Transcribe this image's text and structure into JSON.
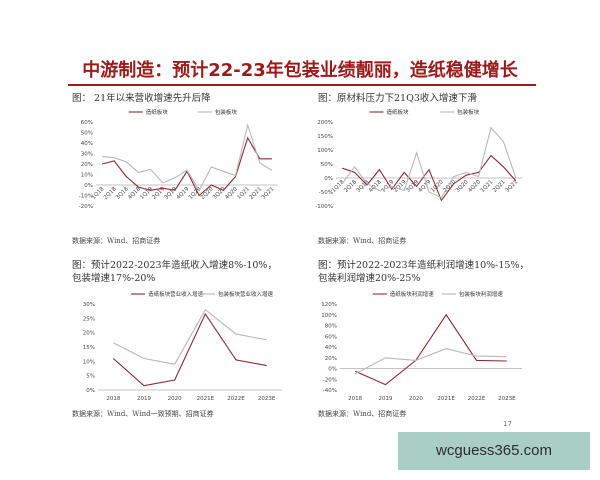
{
  "page": {
    "title": "中游制造：预计22-23年包装业绩靓丽，造纸稳健增长",
    "page_number": "17",
    "watermark": "wcguess365.com"
  },
  "colors": {
    "title": "#9b1b1b",
    "paper_series": "#8a2a35",
    "packaging_series": "#b8b8b8"
  },
  "panels": [
    {
      "title": "图：  21年以来营收增速先升后降",
      "source": "数据来源：Wind、招商证券"
    },
    {
      "title": "图：原材料压力下21Q3收入增速下滑",
      "source": "数据来源：Wind、招商证券"
    },
    {
      "title": "图：预计2022-2023年造纸收入增速8%-10%，\n包装增速17%-20%",
      "source": "数据来源：Wind、Wind一致预期、招商证券"
    },
    {
      "title": "图：预计2022-2023年造纸利润增速10%-15%，\n包装利润增速20%-25%",
      "source": "数据来源：Wind、招商证券"
    }
  ],
  "chart_data": [
    {
      "type": "line",
      "categories": [
        "1Q18",
        "2Q18",
        "3Q18",
        "4Q18",
        "1Q19",
        "2Q19",
        "3Q19",
        "4Q19",
        "1Q20",
        "2Q20",
        "3Q20",
        "4Q20",
        "1Q21",
        "2Q21",
        "3Q21"
      ],
      "series": [
        {
          "name": "造纸板块",
          "color": "#8a2a35",
          "values": [
            20,
            23,
            8,
            -2,
            -5,
            -3,
            -5,
            13,
            -10,
            0,
            -5,
            8,
            45,
            25,
            25
          ]
        },
        {
          "name": "包装板块",
          "color": "#b8b8b8",
          "values": [
            27,
            26,
            22,
            12,
            15,
            2,
            7,
            14,
            -5,
            17,
            13,
            9,
            57,
            21,
            14
          ]
        }
      ],
      "ylim": [
        -20,
        60
      ],
      "yticks": [
        "-20%",
        "-10%",
        "0%",
        "10%",
        "20%",
        "30%",
        "40%",
        "50%",
        "60%"
      ],
      "legend": "top"
    },
    {
      "type": "line",
      "categories": [
        "1Q18",
        "2Q18",
        "3Q18",
        "4Q18",
        "1Q19",
        "2Q19",
        "3Q19",
        "4Q19",
        "1Q20",
        "2Q20",
        "3Q20",
        "4Q20",
        "1Q21",
        "2Q21",
        "3Q21"
      ],
      "series": [
        {
          "name": "造纸板块",
          "color": "#8a2a35",
          "values": [
            35,
            20,
            -25,
            30,
            -40,
            20,
            -30,
            30,
            -80,
            -20,
            10,
            20,
            80,
            40,
            -10
          ]
        },
        {
          "name": "包装板块",
          "color": "#b8b8b8",
          "values": [
            -20,
            40,
            -20,
            -45,
            -30,
            -45,
            90,
            -50,
            -70,
            5,
            20,
            5,
            180,
            130,
            0
          ]
        }
      ],
      "ylim": [
        -100,
        200
      ],
      "yticks": [
        "-100%",
        "-50%",
        "0%",
        "50%",
        "100%",
        "150%",
        "200%"
      ],
      "legend": "top"
    },
    {
      "type": "line",
      "categories": [
        "2018",
        "2019",
        "2020",
        "2021E",
        "2022E",
        "2023E"
      ],
      "series": [
        {
          "name": "造纸板块营业收入增速",
          "color": "#8a2a35",
          "values": [
            11,
            1.5,
            3.5,
            26.5,
            10.5,
            8.5
          ]
        },
        {
          "name": "包装板块营业收入增速",
          "color": "#b8b8b8",
          "values": [
            16.5,
            11,
            9,
            28,
            19.5,
            17.5
          ]
        }
      ],
      "ylim": [
        0,
        30
      ],
      "yticks": [
        "0%",
        "5%",
        "10%",
        "15%",
        "20%",
        "25%",
        "30%"
      ],
      "legend": "top"
    },
    {
      "type": "line",
      "categories": [
        "2018",
        "2019",
        "2020",
        "2021E",
        "2022E",
        "2023E"
      ],
      "series": [
        {
          "name": "造纸板块利润增速",
          "color": "#8a2a35",
          "values": [
            -5,
            -30,
            15,
            100,
            15,
            14
          ]
        },
        {
          "name": "包装板块利润增速",
          "color": "#b8b8b8",
          "values": [
            -10,
            20,
            15,
            37,
            23,
            22
          ]
        }
      ],
      "ylim": [
        -40,
        120
      ],
      "yticks": [
        "-40%",
        "-20%",
        "0%",
        "20%",
        "40%",
        "60%",
        "80%",
        "100%",
        "120%"
      ],
      "legend": "top"
    }
  ]
}
